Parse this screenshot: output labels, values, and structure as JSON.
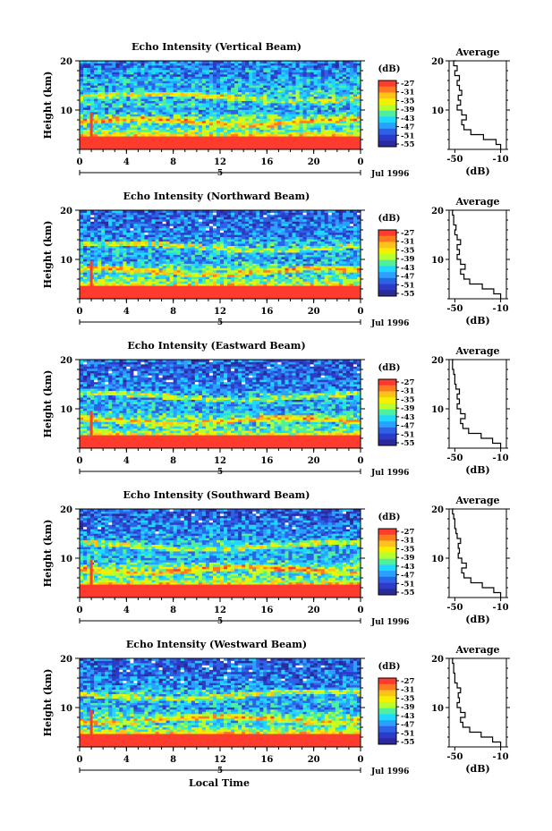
{
  "figure": {
    "xlabel_bottom": "Local Time"
  },
  "colorbar": {
    "unit": "(dB)",
    "ticks": [
      "-27",
      "-31",
      "-35",
      "-39",
      "-43",
      "-47",
      "-51",
      "-55"
    ],
    "colors": [
      "#ff3b2e",
      "#ff7a1f",
      "#ffc21a",
      "#f5f000",
      "#b6ff2e",
      "#4ef0a0",
      "#1fd8ff",
      "#2aa0ff",
      "#2c62e6",
      "#2c3cc8",
      "#2c2a9a"
    ]
  },
  "chart_data": [
    {
      "type": "heatmap",
      "title": "Echo Intensity (Vertical Beam)",
      "ylabel": "Height (km)",
      "yticks": [
        "20",
        "10"
      ],
      "ylim": [
        2,
        20
      ],
      "xticks": [
        "0",
        "4",
        "8",
        "12",
        "16",
        "20",
        "0"
      ],
      "xlim": [
        0,
        24
      ],
      "date_marker": "5",
      "date_label": "Jul 1996",
      "profile": {
        "title": "Average",
        "xlabel": "(dB)",
        "xticks": [
          "-50",
          "-10"
        ],
        "xlim": [
          -55,
          -5
        ],
        "yticks": [
          "20",
          "10"
        ],
        "ylim": [
          2,
          20
        ],
        "height_km": [
          2,
          3,
          4,
          5,
          6,
          7,
          8,
          9,
          10,
          11,
          12,
          13,
          14,
          15,
          16,
          17,
          18,
          19,
          20
        ],
        "values_db": [
          -10,
          -14,
          -25,
          -36,
          -42,
          -44,
          -40,
          -44,
          -48,
          -45,
          -47,
          -44,
          -46,
          -48,
          -46,
          -50,
          -48,
          -51,
          -49
        ]
      }
    },
    {
      "type": "heatmap",
      "title": "Echo Intensity (Northward Beam)",
      "ylabel": "Height (km)",
      "yticks": [
        "20",
        "10"
      ],
      "ylim": [
        2,
        20
      ],
      "xticks": [
        "0",
        "4",
        "8",
        "12",
        "16",
        "20",
        "0"
      ],
      "xlim": [
        0,
        24
      ],
      "date_marker": "5",
      "date_label": "Jul 1996",
      "profile": {
        "title": "Average",
        "xlabel": "(dB)",
        "xticks": [
          "-50",
          "-10"
        ],
        "xlim": [
          -55,
          -5
        ],
        "yticks": [
          "20",
          "10"
        ],
        "ylim": [
          2,
          20
        ],
        "height_km": [
          2,
          3,
          4,
          5,
          6,
          7,
          8,
          9,
          10,
          11,
          12,
          13,
          14,
          15,
          16,
          17,
          18,
          19,
          20
        ],
        "values_db": [
          -10,
          -16,
          -26,
          -37,
          -42,
          -45,
          -41,
          -45,
          -48,
          -46,
          -48,
          -45,
          -48,
          -50,
          -49,
          -51,
          -51,
          -52,
          -51
        ]
      }
    },
    {
      "type": "heatmap",
      "title": "Echo Intensity (Eastward Beam)",
      "ylabel": "Height (km)",
      "yticks": [
        "20",
        "10"
      ],
      "ylim": [
        2,
        20
      ],
      "xticks": [
        "0",
        "4",
        "8",
        "12",
        "16",
        "20",
        "0"
      ],
      "xlim": [
        0,
        24
      ],
      "date_marker": "5",
      "date_label": "Jul 1996",
      "profile": {
        "title": "Average",
        "xlabel": "(dB)",
        "xticks": [
          "-50",
          "-10"
        ],
        "xlim": [
          -55,
          -5
        ],
        "yticks": [
          "20",
          "10"
        ],
        "ylim": [
          2,
          20
        ],
        "height_km": [
          2,
          3,
          4,
          5,
          6,
          7,
          8,
          9,
          10,
          11,
          12,
          13,
          14,
          15,
          16,
          17,
          18,
          19,
          20
        ],
        "values_db": [
          -10,
          -17,
          -27,
          -38,
          -43,
          -45,
          -41,
          -45,
          -48,
          -46,
          -48,
          -46,
          -49,
          -50,
          -50,
          -51,
          -52,
          -52,
          -51
        ]
      }
    },
    {
      "type": "heatmap",
      "title": "Echo Intensity (Southward Beam)",
      "ylabel": "Height (km)",
      "yticks": [
        "20",
        "10"
      ],
      "ylim": [
        2,
        20
      ],
      "xticks": [
        "0",
        "4",
        "8",
        "12",
        "16",
        "20",
        "0"
      ],
      "xlim": [
        0,
        24
      ],
      "date_marker": "5",
      "date_label": "Jul 1996",
      "profile": {
        "title": "Average",
        "xlabel": "(dB)",
        "xticks": [
          "-50",
          "-10"
        ],
        "xlim": [
          -55,
          -5
        ],
        "yticks": [
          "20",
          "10"
        ],
        "ylim": [
          2,
          20
        ],
        "height_km": [
          2,
          3,
          4,
          5,
          6,
          7,
          8,
          9,
          10,
          11,
          12,
          13,
          14,
          15,
          16,
          17,
          18,
          19,
          20
        ],
        "values_db": [
          -10,
          -16,
          -26,
          -36,
          -42,
          -44,
          -40,
          -44,
          -47,
          -46,
          -47,
          -45,
          -48,
          -49,
          -50,
          -50,
          -51,
          -52,
          -51
        ]
      }
    },
    {
      "type": "heatmap",
      "title": "Echo Intensity (Westward Beam)",
      "ylabel": "Height (km)",
      "yticks": [
        "20",
        "10"
      ],
      "ylim": [
        2,
        20
      ],
      "xticks": [
        "0",
        "4",
        "8",
        "12",
        "16",
        "20",
        "0"
      ],
      "xlim": [
        0,
        24
      ],
      "date_marker": "5",
      "date_label": "Jul 1996",
      "profile": {
        "title": "Average",
        "xlabel": "(dB)",
        "xticks": [
          "-50",
          "-10"
        ],
        "xlim": [
          -55,
          -5
        ],
        "yticks": [
          "20",
          "10"
        ],
        "ylim": [
          2,
          20
        ],
        "height_km": [
          2,
          3,
          4,
          5,
          6,
          7,
          8,
          9,
          10,
          11,
          12,
          13,
          14,
          15,
          16,
          17,
          18,
          19,
          20
        ],
        "values_db": [
          -10,
          -17,
          -27,
          -37,
          -43,
          -45,
          -41,
          -45,
          -48,
          -46,
          -47,
          -45,
          -48,
          -50,
          -50,
          -51,
          -51,
          -52,
          -51
        ]
      }
    }
  ]
}
